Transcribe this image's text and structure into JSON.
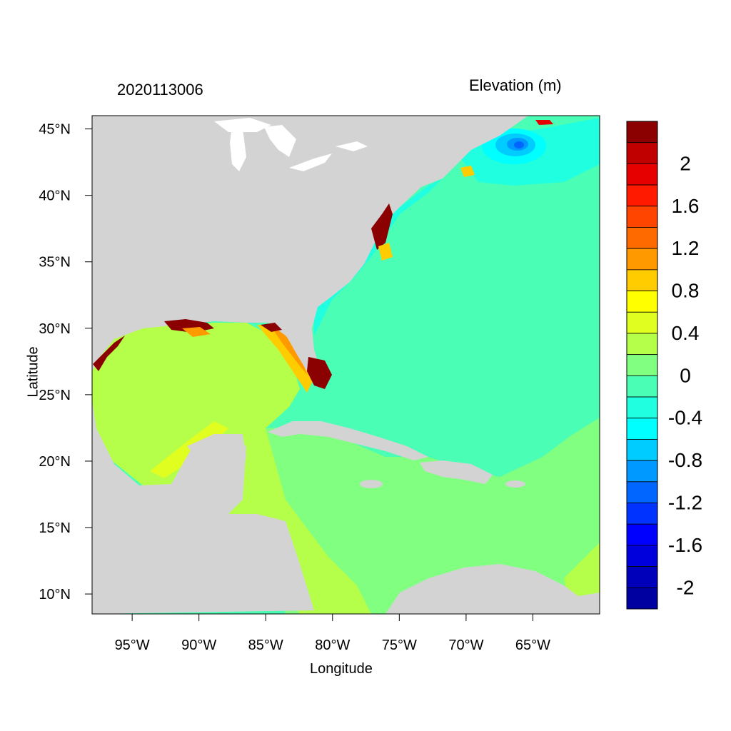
{
  "titles": {
    "left": "2020113006",
    "right": "Elevation (m)"
  },
  "axes": {
    "x_title": "Longitude",
    "y_title": "Latitude",
    "x_ticks": [
      {
        "value": -95,
        "label": "95°W"
      },
      {
        "value": -90,
        "label": "90°W"
      },
      {
        "value": -85,
        "label": "85°W"
      },
      {
        "value": -80,
        "label": "80°W"
      },
      {
        "value": -75,
        "label": "75°W"
      },
      {
        "value": -70,
        "label": "70°W"
      },
      {
        "value": -65,
        "label": "65°W"
      }
    ],
    "y_ticks": [
      {
        "value": 45,
        "label": "45°N"
      },
      {
        "value": 40,
        "label": "40°N"
      },
      {
        "value": 35,
        "label": "35°N"
      },
      {
        "value": 30,
        "label": "30°N"
      },
      {
        "value": 25,
        "label": "25°N"
      },
      {
        "value": 20,
        "label": "20°N"
      },
      {
        "value": 15,
        "label": "15°N"
      },
      {
        "value": 10,
        "label": "10°N"
      }
    ],
    "lon_range": [
      -98,
      -60
    ],
    "lat_range": [
      8.5,
      46
    ]
  },
  "colorbar": {
    "levels_top_to_bottom": [
      {
        "color": "#8b0000",
        "label": ""
      },
      {
        "color": "#c00000",
        "label": "2"
      },
      {
        "color": "#e60000",
        "label": ""
      },
      {
        "color": "#ff1a00",
        "label": "1.6"
      },
      {
        "color": "#ff4500",
        "label": ""
      },
      {
        "color": "#ff6a00",
        "label": "1.2"
      },
      {
        "color": "#ff9900",
        "label": ""
      },
      {
        "color": "#ffcc00",
        "label": "0.8"
      },
      {
        "color": "#ffff00",
        "label": ""
      },
      {
        "color": "#e0ff20",
        "label": "0.4"
      },
      {
        "color": "#b5ff4a",
        "label": ""
      },
      {
        "color": "#80ff80",
        "label": "0"
      },
      {
        "color": "#4affb5",
        "label": ""
      },
      {
        "color": "#20ffe0",
        "label": "-0.4"
      },
      {
        "color": "#00ffff",
        "label": ""
      },
      {
        "color": "#00ccff",
        "label": "-0.8"
      },
      {
        "color": "#0099ff",
        "label": ""
      },
      {
        "color": "#0066ff",
        "label": "-1.2"
      },
      {
        "color": "#0033ff",
        "label": ""
      },
      {
        "color": "#0000ff",
        "label": "-1.6"
      },
      {
        "color": "#0000dd",
        "label": ""
      },
      {
        "color": "#0000bb",
        "label": "-2"
      },
      {
        "color": "#0000a0",
        "label": ""
      }
    ]
  },
  "map": {
    "land_color": "#d3d3d3",
    "lake_color": "#ffffff",
    "ocean_background": "#4affb5"
  }
}
